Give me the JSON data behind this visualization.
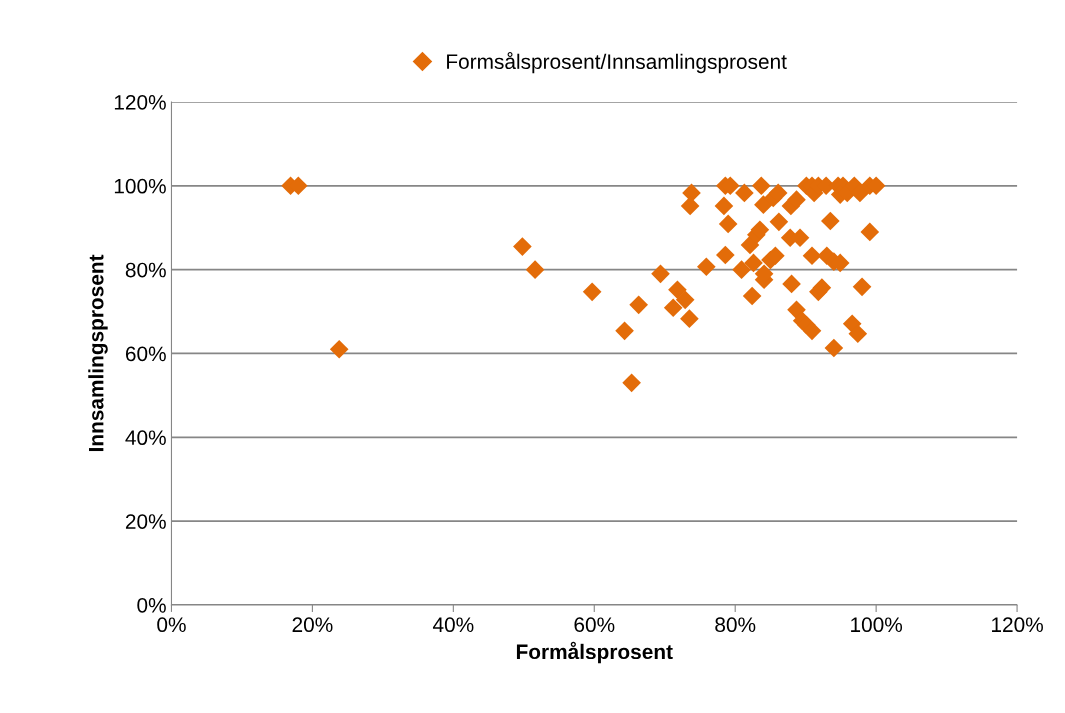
{
  "chart_data": {
    "type": "scatter",
    "xlabel": "Formålsprosent",
    "ylabel": "Innsamlingsprosent",
    "xlim": [
      0,
      120
    ],
    "ylim": [
      0,
      120
    ],
    "xticks": [
      {
        "value": 0,
        "label": "0%"
      },
      {
        "value": 20,
        "label": "20%"
      },
      {
        "value": 40,
        "label": "40%"
      },
      {
        "value": 60,
        "label": "60%"
      },
      {
        "value": 80,
        "label": "80%"
      },
      {
        "value": 100,
        "label": "100%"
      },
      {
        "value": 120,
        "label": "120%"
      }
    ],
    "yticks": [
      {
        "value": 0,
        "label": "0%"
      },
      {
        "value": 20,
        "label": "20%"
      },
      {
        "value": 40,
        "label": "40%"
      },
      {
        "value": 60,
        "label": "60%"
      },
      {
        "value": 80,
        "label": "80%"
      },
      {
        "value": 100,
        "label": "100%"
      },
      {
        "value": 120,
        "label": "120%"
      }
    ],
    "grid": "y",
    "legend": "top",
    "marker": "diamond",
    "series": [
      {
        "name": "Formsålsprosent/Innsamlingsprosent",
        "color": "#e36c09",
        "x": [
          16.9,
          18,
          23.8,
          49.8,
          51.6,
          59.7,
          64.3,
          65.3,
          66.3,
          69.4,
          71.8,
          71.2,
          72.9,
          73.5,
          73.8,
          73.6,
          75.9,
          78.6,
          79.3,
          78.4,
          79,
          78.6,
          80.9,
          81.3,
          82.1,
          82.4,
          83,
          83.5,
          82.6,
          84.1,
          84.1,
          83.7,
          84,
          85.4,
          86.1,
          85,
          85.7,
          86.2,
          88,
          87.8,
          89.2,
          87.9,
          88.7,
          88.7,
          89.5,
          90.1,
          90.9,
          90.1,
          90.9,
          91.2,
          90.9,
          91.8,
          92.3,
          91.8,
          92.9,
          93,
          94,
          94.9,
          93.5,
          94.6,
          95.3,
          94.9,
          95.9,
          94,
          96.6,
          97.4,
          98,
          96.9,
          97.7,
          99.1,
          100,
          99.1
        ],
        "values": [
          100,
          100,
          61,
          85.5,
          80,
          74.7,
          65.4,
          53,
          71.6,
          79,
          75.2,
          70.9,
          72.8,
          68.3,
          98.3,
          95.2,
          80.7,
          100,
          100,
          95.2,
          90.9,
          83.5,
          80,
          98.3,
          85.9,
          73.7,
          88.3,
          89.5,
          81.6,
          77.6,
          79,
          100,
          95.5,
          97.1,
          98.3,
          82.3,
          83.3,
          91.4,
          76.6,
          87.6,
          87.6,
          95.2,
          96.7,
          70.4,
          67.8,
          66.8,
          65.4,
          100,
          100,
          98.3,
          83.3,
          74.7,
          75.7,
          100,
          100,
          83.3,
          81.9,
          81.6,
          91.6,
          100,
          100,
          97.9,
          98.3,
          61.3,
          67.1,
          64.7,
          75.9,
          100,
          98.3,
          100,
          100,
          89
        ]
      }
    ]
  }
}
